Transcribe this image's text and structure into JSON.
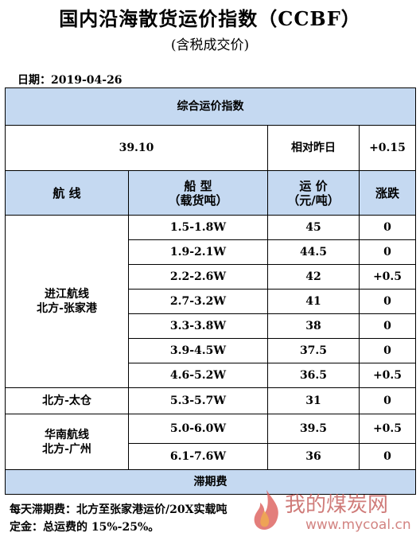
{
  "header": {
    "title": "国内沿海散货运价指数（CCBF）",
    "subtitle": "(含税成交价)",
    "date_label": "日期：",
    "date_value": "2019-04-26"
  },
  "composite": {
    "section_title": "综合运价指数",
    "index_value": "39.10",
    "compare_label": "相对昨日",
    "change": "+0.15"
  },
  "columns": {
    "route": "航 线",
    "ship_type_line1": "船 型",
    "ship_type_line2": "（载货吨）",
    "rate_line1": "运 价",
    "rate_line2": "（元/吨）",
    "change": "涨跌"
  },
  "groups": [
    {
      "route_line1": "进江航线",
      "route_line2": "北方-张家港",
      "rows": [
        {
          "ship": "1.5-1.8W",
          "rate": "45",
          "change": "0"
        },
        {
          "ship": "1.9-2.1W",
          "rate": "44.5",
          "change": "0"
        },
        {
          "ship": "2.2-2.6W",
          "rate": "42",
          "change": "+0.5"
        },
        {
          "ship": "2.7-3.2W",
          "rate": "41",
          "change": "0"
        },
        {
          "ship": "3.3-3.8W",
          "rate": "38",
          "change": "0"
        },
        {
          "ship": "3.9-4.5W",
          "rate": "37.5",
          "change": "0"
        },
        {
          "ship": "4.6-5.2W",
          "rate": "36.5",
          "change": "+0.5"
        }
      ]
    },
    {
      "route_line1": "北方-太仓",
      "route_line2": "",
      "rows": [
        {
          "ship": "5.3-5.7W",
          "rate": "31",
          "change": "0"
        }
      ]
    },
    {
      "route_line1": "华南航线",
      "route_line2": "北方-广州",
      "rows": [
        {
          "ship": "5.0-6.0W",
          "rate": "39.5",
          "change": "+0.5"
        },
        {
          "ship": "6.1-7.6W",
          "rate": "36",
          "change": "0"
        }
      ]
    }
  ],
  "demurrage": {
    "section_title": "滞期费",
    "line1": "每天滞期费：北方至张家港运价/20X实载吨",
    "line2": "定金：总运费的 15%-25%。"
  },
  "watermark": {
    "text": "我的煤炭网",
    "url": "www.mycoal.cn"
  },
  "colors": {
    "header_fill": "#c5d9f1",
    "watermark": "#c0504d"
  }
}
